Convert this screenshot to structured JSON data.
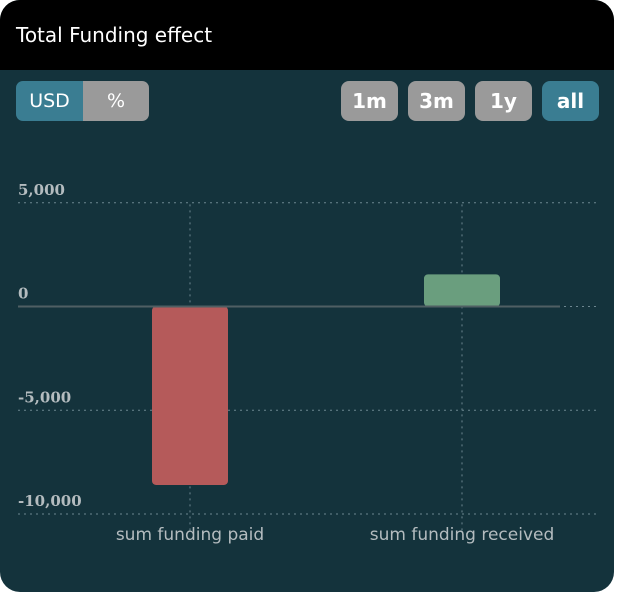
{
  "header": {
    "title": "Total Funding effect"
  },
  "unit_toggle": {
    "usd_label": "USD",
    "percent_label": "%",
    "selected": "USD"
  },
  "ranges": {
    "m1": "1m",
    "m3": "3m",
    "y1": "1y",
    "all": "all",
    "selected": "all"
  },
  "colors": {
    "negative": "#b55a5a",
    "positive": "#6a9e7e",
    "accent": "#3a7d92"
  },
  "chart_data": {
    "type": "bar",
    "categories": [
      "sum funding paid",
      "sum funding received"
    ],
    "values": [
      -8600,
      1550
    ],
    "ylim": [
      -10500,
      5500
    ],
    "yticks": [
      5000,
      0,
      -5000,
      -10000
    ],
    "ytick_labels": [
      "5,000",
      "0",
      "-5,000",
      "-10,000"
    ],
    "grid": true
  }
}
